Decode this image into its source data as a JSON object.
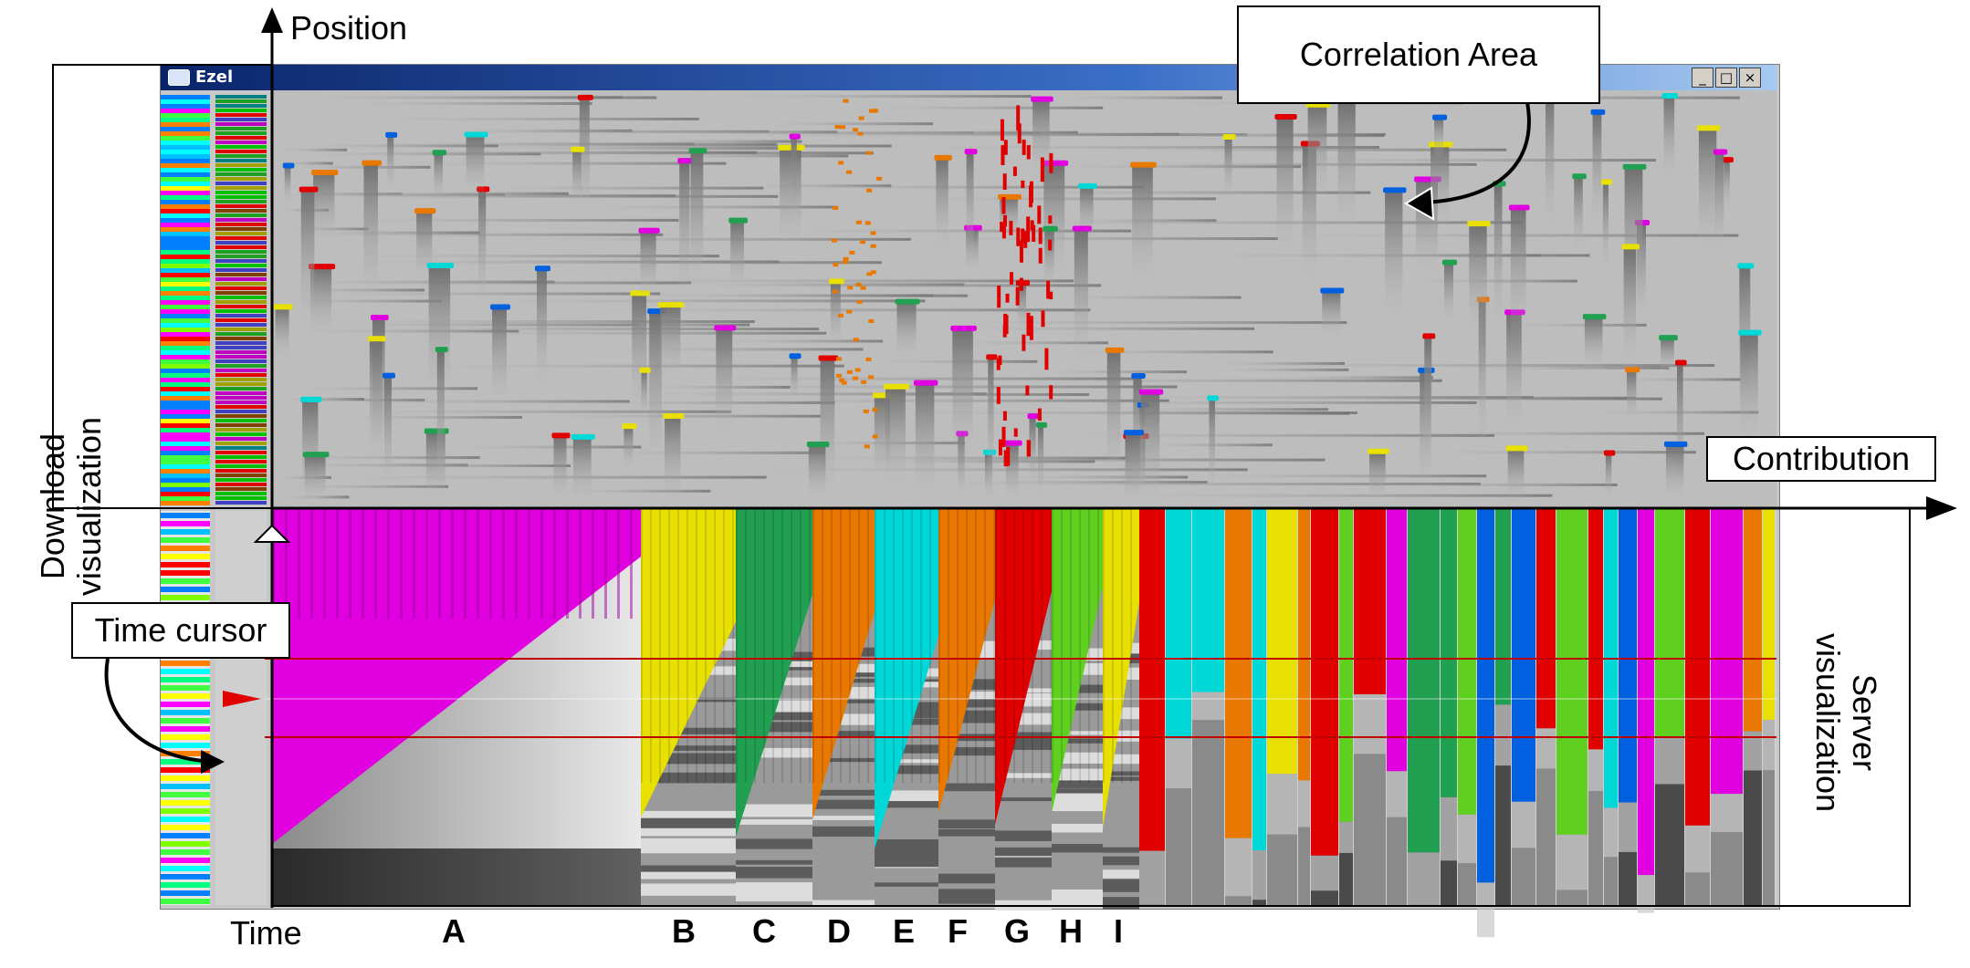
{
  "window": {
    "title": "Ezel",
    "controls": [
      "_",
      "□",
      "×"
    ]
  },
  "labels": {
    "position": "Position",
    "contribution": "Contribution",
    "correlation_area": "Correlation Area",
    "time_cursor": "Time cursor",
    "time": "Time",
    "download_line1": "Download",
    "download_line2": "visualization",
    "server_line1": "Server",
    "server_line2": "visualization"
  },
  "groups": [
    "A",
    "B",
    "C",
    "D",
    "E",
    "F",
    "G",
    "H",
    "I"
  ],
  "colors": {
    "magenta": "#e000e0",
    "yellow": "#e8e000",
    "green": "#20a050",
    "orange": "#e87800",
    "cyan": "#00d8d8",
    "red": "#e00000",
    "lime": "#60d020",
    "blue": "#0060e0",
    "gray": "#b8b8b8"
  }
}
